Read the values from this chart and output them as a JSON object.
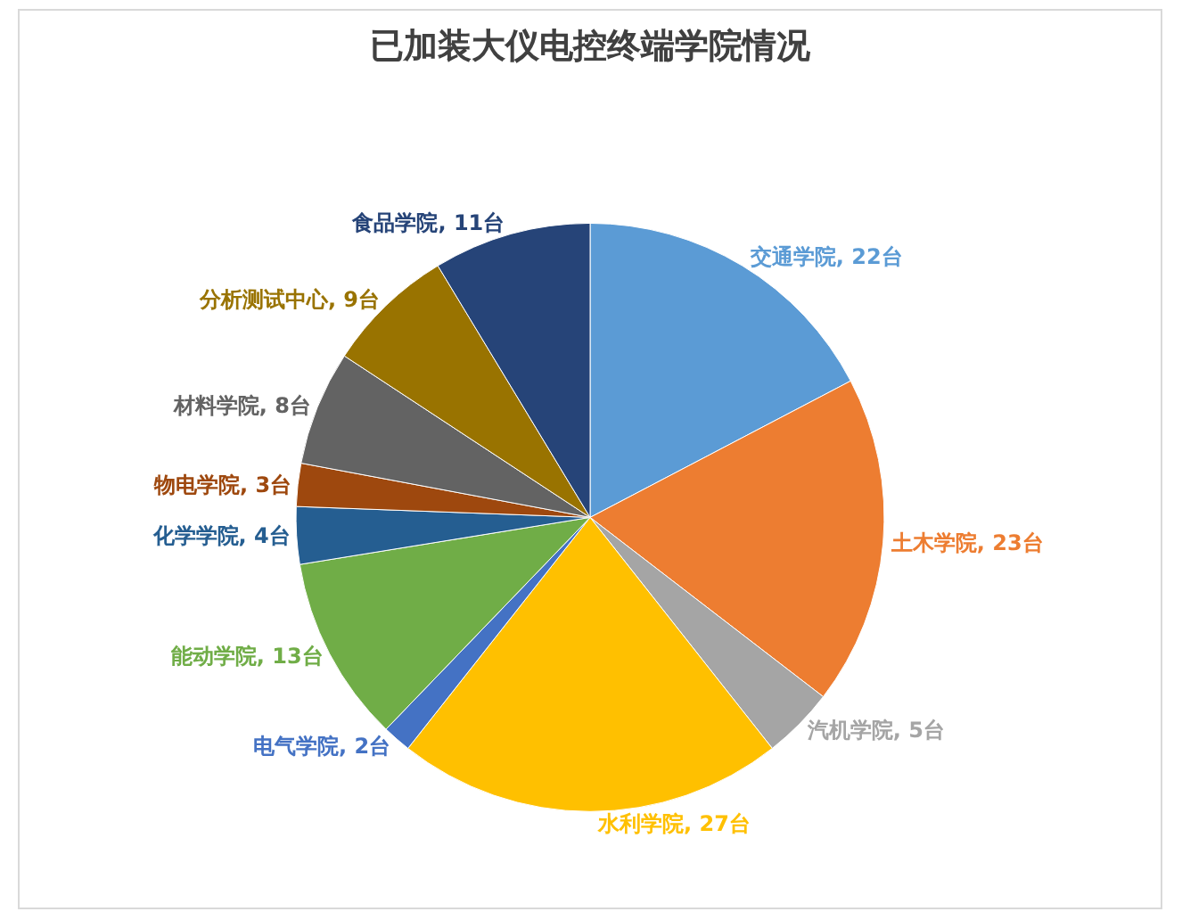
{
  "chart_data": {
    "type": "pie",
    "title": "已加装大仪电控终端学院情况",
    "categories": [
      "交通学院",
      "土木学院",
      "汽机学院",
      "水利学院",
      "电气学院",
      "能动学院",
      "化学学院",
      "物电学院",
      "材料学院",
      "分析测试中心",
      "食品学院"
    ],
    "values": [
      22,
      23,
      5,
      27,
      2,
      13,
      4,
      3,
      8,
      9,
      11
    ],
    "value_labels": [
      "22台",
      "23台",
      "5台",
      "27台",
      "2台",
      "13台",
      "4台",
      "3台",
      "8台",
      "9台",
      "11台"
    ],
    "colors": [
      "#5b9bd5",
      "#ed7d31",
      "#a5a5a5",
      "#ffc000",
      "#4472c4",
      "#70ad47",
      "#255e91",
      "#9e480e",
      "#636363",
      "#997300",
      "#264478"
    ],
    "legend": false
  }
}
